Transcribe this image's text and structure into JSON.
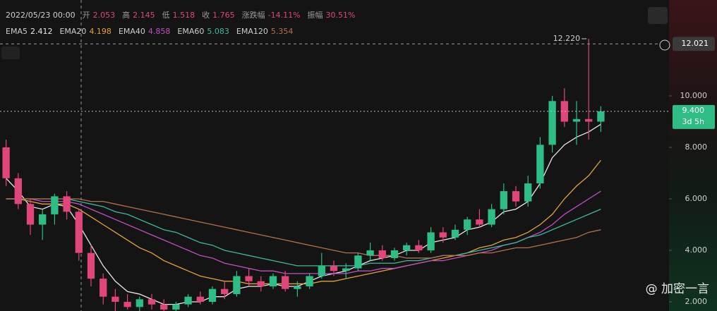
{
  "chart_data": {
    "type": "candlestick",
    "header": {
      "date": "2022/05/23 00:00",
      "items": [
        {
          "name": "开",
          "value": "2.053"
        },
        {
          "name": "高",
          "value": "2.145"
        },
        {
          "name": "低",
          "value": "1.518"
        },
        {
          "name": "收",
          "value": "1.765"
        },
        {
          "name": "涨跌幅",
          "value": "-14.11%"
        },
        {
          "name": "振幅",
          "value": "30.51%"
        }
      ]
    },
    "categories": [
      null,
      null,
      null,
      null,
      null,
      null,
      null,
      null,
      null,
      null,
      null,
      null,
      null,
      null,
      null,
      null,
      null,
      null,
      null,
      null,
      null,
      null,
      null,
      null,
      null,
      null,
      null,
      null,
      null,
      null,
      null,
      null,
      null,
      null,
      null,
      null,
      null,
      null,
      null,
      null,
      null,
      null,
      null,
      null,
      null,
      null,
      null,
      null,
      null,
      null
    ],
    "open": [
      8.0,
      6.8,
      5.8,
      5.0,
      5.4,
      6.1,
      5.5,
      3.9,
      2.9,
      2.2,
      2.0,
      1.8,
      2.1,
      1.9,
      1.7,
      1.9,
      2.2,
      2.0,
      2.5,
      2.3,
      3.0,
      2.8,
      2.6,
      3.0,
      2.5,
      2.6,
      3.0,
      3.4,
      3.2,
      3.3,
      3.8,
      4.0,
      3.7,
      4.0,
      4.2,
      4.0,
      4.7,
      4.5,
      4.8,
      5.2,
      5.0,
      5.6,
      6.3,
      5.9,
      6.6,
      8.1,
      9.8,
      9.0,
      9.1,
      9.0
    ],
    "high": [
      8.3,
      7.0,
      6.0,
      5.6,
      6.2,
      6.3,
      5.6,
      4.2,
      3.1,
      2.5,
      2.3,
      2.2,
      2.3,
      2.1,
      2.0,
      2.3,
      2.4,
      2.6,
      2.8,
      3.2,
      3.3,
      3.0,
      3.1,
      3.2,
      2.8,
      3.1,
      3.9,
      3.6,
      3.5,
      3.9,
      4.3,
      4.2,
      4.1,
      4.3,
      4.4,
      4.9,
      4.9,
      5.0,
      5.3,
      5.6,
      5.8,
      6.6,
      6.5,
      6.9,
      8.4,
      10.0,
      10.3,
      9.8,
      12.22,
      9.6
    ],
    "low": [
      6.5,
      5.6,
      4.6,
      4.4,
      5.0,
      5.2,
      3.6,
      2.6,
      1.9,
      1.6,
      1.7,
      1.6,
      1.7,
      1.6,
      1.6,
      1.8,
      1.9,
      1.9,
      2.1,
      2.2,
      2.6,
      2.4,
      2.5,
      2.4,
      2.2,
      2.5,
      2.9,
      3.0,
      2.9,
      3.2,
      3.6,
      3.6,
      3.6,
      3.8,
      3.9,
      3.9,
      4.3,
      4.4,
      4.6,
      4.9,
      4.9,
      5.4,
      5.7,
      5.7,
      6.4,
      7.8,
      8.8,
      8.1,
      8.3,
      8.6
    ],
    "close": [
      6.8,
      5.8,
      5.0,
      5.4,
      6.1,
      5.5,
      3.9,
      2.9,
      2.2,
      2.0,
      1.8,
      2.1,
      1.9,
      1.7,
      1.9,
      2.2,
      2.0,
      2.5,
      2.3,
      3.0,
      2.8,
      2.6,
      3.0,
      2.5,
      2.6,
      3.0,
      3.4,
      3.2,
      3.3,
      3.8,
      4.0,
      3.7,
      4.0,
      4.2,
      4.0,
      4.7,
      4.5,
      4.8,
      5.2,
      5.0,
      5.6,
      6.3,
      5.9,
      6.6,
      8.1,
      9.8,
      9.0,
      9.1,
      9.0,
      9.4
    ],
    "up_color": "#2ebd85",
    "down_color": "#e0467c",
    "series": [
      {
        "name": "EMA5",
        "legend_value": "2.412",
        "color": "#e8e8e8",
        "values": [
          6.8,
          6.3,
          5.7,
          5.6,
          5.8,
          5.7,
          5.0,
          4.2,
          3.4,
          2.8,
          2.4,
          2.3,
          2.1,
          1.9,
          1.9,
          2.0,
          2.0,
          2.2,
          2.2,
          2.5,
          2.6,
          2.6,
          2.7,
          2.6,
          2.6,
          2.8,
          3.0,
          3.1,
          3.2,
          3.4,
          3.6,
          3.7,
          3.8,
          4.0,
          4.0,
          4.3,
          4.4,
          4.5,
          4.8,
          4.9,
          5.1,
          5.5,
          5.6,
          5.9,
          6.6,
          7.6,
          8.1,
          8.4,
          8.6,
          8.9
        ]
      },
      {
        "name": "EMA20",
        "legend_value": "4.198",
        "color": "#e2a33a",
        "values": [
          6.0,
          6.0,
          5.9,
          5.8,
          5.8,
          5.8,
          5.6,
          5.3,
          5.0,
          4.7,
          4.4,
          4.1,
          3.9,
          3.6,
          3.4,
          3.2,
          3.0,
          2.9,
          2.8,
          2.8,
          2.7,
          2.7,
          2.7,
          2.7,
          2.7,
          2.7,
          2.8,
          2.8,
          2.9,
          3.0,
          3.1,
          3.2,
          3.3,
          3.4,
          3.5,
          3.6,
          3.7,
          3.8,
          3.9,
          4.1,
          4.2,
          4.4,
          4.5,
          4.7,
          5.0,
          5.4,
          6.0,
          6.5,
          6.9,
          7.5
        ]
      },
      {
        "name": "EMA40",
        "legend_value": "4.858",
        "color": "#c04fc4",
        "values": [
          6.0,
          6.0,
          6.0,
          5.9,
          5.9,
          5.9,
          5.8,
          5.6,
          5.4,
          5.2,
          5.0,
          4.8,
          4.6,
          4.4,
          4.2,
          4.0,
          3.8,
          3.7,
          3.5,
          3.4,
          3.3,
          3.2,
          3.2,
          3.1,
          3.1,
          3.1,
          3.1,
          3.1,
          3.1,
          3.2,
          3.2,
          3.3,
          3.3,
          3.4,
          3.5,
          3.6,
          3.6,
          3.7,
          3.8,
          3.9,
          4.0,
          4.2,
          4.3,
          4.5,
          4.7,
          5.0,
          5.4,
          5.7,
          6.0,
          6.3
        ]
      },
      {
        "name": "EMA60",
        "legend_value": "5.083",
        "color": "#3fb8a0",
        "values": [
          6.0,
          6.0,
          6.0,
          6.0,
          6.0,
          6.0,
          5.9,
          5.8,
          5.7,
          5.5,
          5.4,
          5.2,
          5.0,
          4.8,
          4.7,
          4.5,
          4.3,
          4.2,
          4.0,
          3.9,
          3.8,
          3.7,
          3.6,
          3.5,
          3.4,
          3.4,
          3.4,
          3.4,
          3.4,
          3.4,
          3.5,
          3.5,
          3.5,
          3.6,
          3.6,
          3.7,
          3.8,
          3.8,
          3.9,
          4.0,
          4.1,
          4.2,
          4.3,
          4.5,
          4.6,
          4.8,
          5.0,
          5.2,
          5.4,
          5.6
        ]
      },
      {
        "name": "EMA120",
        "legend_value": "5.354",
        "color": "#b3704a",
        "values": [
          6.0,
          6.0,
          6.0,
          6.0,
          6.0,
          6.0,
          6.0,
          5.9,
          5.9,
          5.8,
          5.7,
          5.6,
          5.5,
          5.4,
          5.3,
          5.2,
          5.1,
          5.0,
          4.9,
          4.8,
          4.7,
          4.6,
          4.5,
          4.4,
          4.3,
          4.2,
          4.1,
          4.0,
          3.9,
          3.9,
          3.8,
          3.8,
          3.8,
          3.7,
          3.7,
          3.7,
          3.8,
          3.8,
          3.8,
          3.9,
          3.9,
          4.0,
          4.1,
          4.1,
          4.2,
          4.3,
          4.4,
          4.5,
          4.7,
          4.8
        ]
      }
    ],
    "ylim": [
      1.644,
      13.726
    ],
    "yticks": [
      {
        "value": 2,
        "label": "2.000"
      },
      {
        "value": 4,
        "label": "4.000"
      },
      {
        "value": 6,
        "label": "6.000"
      },
      {
        "value": 8,
        "label": "8.000"
      },
      {
        "value": 10,
        "label": "10.000"
      }
    ],
    "high_marker": {
      "value": 12.22,
      "label": "12.220"
    },
    "crosshair_price": {
      "value": 12.021,
      "label": "12.021"
    },
    "last_price": {
      "value": 9.4,
      "label": "9.400",
      "countdown": "3d 5h"
    },
    "watermark": "@ 加密一言"
  }
}
